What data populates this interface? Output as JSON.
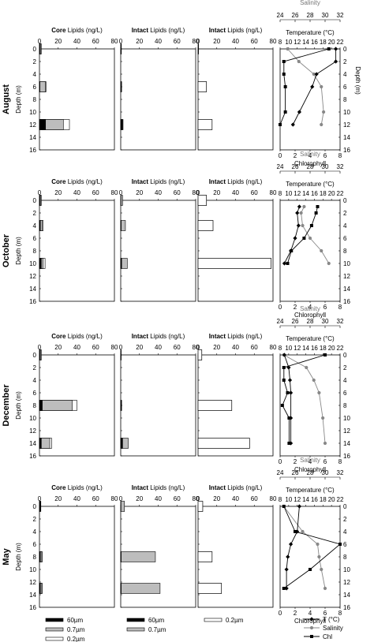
{
  "figure": {
    "months": [
      "August",
      "October",
      "December",
      "May"
    ],
    "depth_label": "Depth (m)",
    "depth_ticks": [
      0,
      2,
      4,
      6,
      8,
      10,
      12,
      14,
      16
    ],
    "panel_titles": [
      {
        "bold": "Core",
        "rest": " Lipids (ng/L)"
      },
      {
        "bold": "Intact",
        "rest": " Lipids (ng/L)"
      },
      {
        "bold": "Intact",
        "rest": " Lipids (ng/L)"
      }
    ],
    "lipid_ticks": [
      0,
      20,
      40,
      60,
      80
    ],
    "salinity_label": "Salinity",
    "salinity_ticks": [
      24,
      26,
      28,
      30,
      32
    ],
    "temperature_label": "Temperature (°C)",
    "temperature_ticks": [
      8,
      10,
      12,
      14,
      16,
      18,
      20,
      22
    ],
    "chlorophyll_label": "Chlorophyll",
    "chlorophyll_ticks": [
      0,
      2,
      4,
      6,
      8
    ],
    "legend_groups": [
      [
        "60µm",
        "0.7µm",
        "0.2µm"
      ],
      [
        "60µm",
        "0.7µm"
      ],
      [
        "0.2µm"
      ]
    ],
    "legend_lines": [
      "T (°C)",
      "Salinity",
      "Chl"
    ]
  },
  "colors": {
    "fraction_60": "#000000",
    "fraction_07": "#bdbdbd",
    "fraction_02": "#ffffff",
    "temperature": "#000000",
    "salinity": "#888888",
    "chlorophyll": "#000000",
    "salinity_text": "#777777"
  },
  "chart_data": [
    {
      "type": "bar",
      "month": "August",
      "ylim": [
        16,
        0
      ],
      "lipid_xlim": [
        0,
        80
      ],
      "core": [
        {
          "depth": 0,
          "f60": 0.5,
          "f07": 1.5,
          "f02": 2
        },
        {
          "depth": 6,
          "f60": 0.5,
          "f07": 6.5,
          "f02": 7
        },
        {
          "depth": 12,
          "f60": 6.5,
          "f07": 25.5,
          "f02": 32
        }
      ],
      "intact_large": [
        {
          "depth": 0,
          "f60": 0.3,
          "f07": 0.7
        },
        {
          "depth": 6,
          "f60": 0.5,
          "f07": 1
        },
        {
          "depth": 12,
          "f60": 2,
          "f07": 2.5
        }
      ],
      "intact_02": [
        {
          "depth": 0,
          "value": 0.5
        },
        {
          "depth": 6,
          "value": 9
        },
        {
          "depth": 12,
          "value": 15
        }
      ],
      "temperature": [
        {
          "depth": 0,
          "value": 21
        },
        {
          "depth": 2,
          "value": 21
        },
        {
          "depth": 4,
          "value": 16.5
        },
        {
          "depth": 6,
          "value": 15.5
        },
        {
          "depth": 10,
          "value": 12.5
        },
        {
          "depth": 12,
          "value": 11
        }
      ],
      "salinity": [
        {
          "depth": 0,
          "value": 25
        },
        {
          "depth": 2,
          "value": 26.5
        },
        {
          "depth": 4,
          "value": 28.5
        },
        {
          "depth": 6,
          "value": 29.5
        },
        {
          "depth": 10,
          "value": 29.8
        },
        {
          "depth": 12,
          "value": 29.5
        }
      ],
      "chlorophyll": [
        {
          "depth": 0,
          "value": 6.5
        },
        {
          "depth": 2,
          "value": 0.5
        },
        {
          "depth": 4,
          "value": 0.5
        },
        {
          "depth": 6,
          "value": 0.7
        },
        {
          "depth": 10,
          "value": 0.7
        },
        {
          "depth": 12,
          "value": 0
        }
      ]
    },
    {
      "type": "bar",
      "month": "October",
      "ylim": [
        16,
        0
      ],
      "lipid_xlim": [
        0,
        80
      ],
      "core": [
        {
          "depth": 0,
          "f60": 0.5,
          "f07": 1.5,
          "f02": 2
        },
        {
          "depth": 4,
          "f60": 1,
          "f07": 3,
          "f02": 4
        },
        {
          "depth": 10,
          "f60": 2,
          "f07": 4,
          "f02": 6
        }
      ],
      "intact_large": [
        {
          "depth": 0,
          "f60": 0.3,
          "f07": 2
        },
        {
          "depth": 4,
          "f60": 0.5,
          "f07": 5
        },
        {
          "depth": 10,
          "f60": 1,
          "f07": 7
        }
      ],
      "intact_02": [
        {
          "depth": 0,
          "value": 9
        },
        {
          "depth": 4,
          "value": 16
        },
        {
          "depth": 10,
          "value": 78
        }
      ],
      "temperature": [
        {
          "depth": 1,
          "value": 12.5
        },
        {
          "depth": 2,
          "value": 12
        },
        {
          "depth": 4,
          "value": 12.3
        },
        {
          "depth": 6,
          "value": 11.5
        },
        {
          "depth": 8,
          "value": 10.5
        },
        {
          "depth": 10,
          "value": 9
        }
      ],
      "salinity": [
        {
          "depth": 1,
          "value": 27.2
        },
        {
          "depth": 2,
          "value": 26.8
        },
        {
          "depth": 4,
          "value": 27
        },
        {
          "depth": 6,
          "value": 28
        },
        {
          "depth": 8,
          "value": 29.5
        },
        {
          "depth": 10,
          "value": 30.5
        }
      ],
      "chlorophyll": [
        {
          "depth": 1,
          "value": 5
        },
        {
          "depth": 2,
          "value": 4.8
        },
        {
          "depth": 4,
          "value": 4.2
        },
        {
          "depth": 6,
          "value": 3.2
        },
        {
          "depth": 8,
          "value": 1.5
        },
        {
          "depth": 10,
          "value": 1
        }
      ]
    },
    {
      "type": "bar",
      "month": "December",
      "ylim": [
        16,
        0
      ],
      "lipid_xlim": [
        0,
        80
      ],
      "core": [
        {
          "depth": 0,
          "f60": 0.5,
          "f07": 1.5,
          "f02": 2
        },
        {
          "depth": 8,
          "f60": 3,
          "f07": 35,
          "f02": 40
        },
        {
          "depth": 14,
          "f60": 2,
          "f07": 11,
          "f02": 13
        }
      ],
      "intact_large": [
        {
          "depth": 0,
          "f60": 0.3,
          "f07": 0.5
        },
        {
          "depth": 8,
          "f60": 0.8,
          "f07": 1
        },
        {
          "depth": 14,
          "f60": 2,
          "f07": 8
        }
      ],
      "intact_02": [
        {
          "depth": 0,
          "value": 4
        },
        {
          "depth": 8,
          "value": 36
        },
        {
          "depth": 14,
          "value": 55
        }
      ],
      "temperature": [
        {
          "depth": 0,
          "value": 9
        },
        {
          "depth": 2,
          "value": 10
        },
        {
          "depth": 4,
          "value": 10.3
        },
        {
          "depth": 6,
          "value": 10.5
        },
        {
          "depth": 10,
          "value": 10.5
        },
        {
          "depth": 14,
          "value": 10.5
        }
      ],
      "salinity": [
        {
          "depth": 0,
          "value": 24.5
        },
        {
          "depth": 2,
          "value": 27.5
        },
        {
          "depth": 4,
          "value": 28.5
        },
        {
          "depth": 6,
          "value": 29.2
        },
        {
          "depth": 10,
          "value": 29.7
        },
        {
          "depth": 14,
          "value": 30
        }
      ],
      "chlorophyll": [
        {
          "depth": 0,
          "value": 6
        },
        {
          "depth": 2,
          "value": 0.5
        },
        {
          "depth": 4,
          "value": 0.5
        },
        {
          "depth": 6,
          "value": 1
        },
        {
          "depth": 8,
          "value": 0.3
        },
        {
          "depth": 10,
          "value": 1.2
        },
        {
          "depth": 14,
          "value": 1.2
        }
      ]
    },
    {
      "type": "bar",
      "month": "May",
      "ylim": [
        16,
        0
      ],
      "lipid_xlim": [
        0,
        80
      ],
      "core": [
        {
          "depth": 0,
          "f60": 0.5,
          "f07": 1,
          "f02": 1.5
        },
        {
          "depth": 8,
          "f60": 1,
          "f07": 2.5,
          "f02": 3
        },
        {
          "depth": 13,
          "f60": 1,
          "f07": 2.5,
          "f02": 3
        }
      ],
      "intact_large": [
        {
          "depth": 0,
          "f60": 0.3,
          "f07": 4
        },
        {
          "depth": 8,
          "f60": 0.5,
          "f07": 37
        },
        {
          "depth": 13,
          "f60": 0.5,
          "f07": 42
        }
      ],
      "intact_02": [
        {
          "depth": 0,
          "value": 5
        },
        {
          "depth": 8,
          "value": 15
        },
        {
          "depth": 13,
          "value": 25
        }
      ],
      "temperature": [
        {
          "depth": 0,
          "value": 12.5
        },
        {
          "depth": 4,
          "value": 12
        },
        {
          "depth": 6,
          "value": 10.5
        },
        {
          "depth": 8,
          "value": 9.8
        },
        {
          "depth": 10,
          "value": 9.5
        },
        {
          "depth": 13,
          "value": 9.5
        }
      ],
      "salinity": [
        {
          "depth": 0,
          "value": 24.5
        },
        {
          "depth": 4,
          "value": 27
        },
        {
          "depth": 6,
          "value": 29
        },
        {
          "depth": 8,
          "value": 29.2
        },
        {
          "depth": 10,
          "value": 29.5
        },
        {
          "depth": 13,
          "value": 30
        }
      ],
      "chlorophyll": [
        {
          "depth": 0,
          "value": 0.5
        },
        {
          "depth": 4,
          "value": 2
        },
        {
          "depth": 6,
          "value": 8
        },
        {
          "depth": 10,
          "value": 4
        },
        {
          "depth": 13,
          "value": 0.5
        }
      ]
    }
  ]
}
